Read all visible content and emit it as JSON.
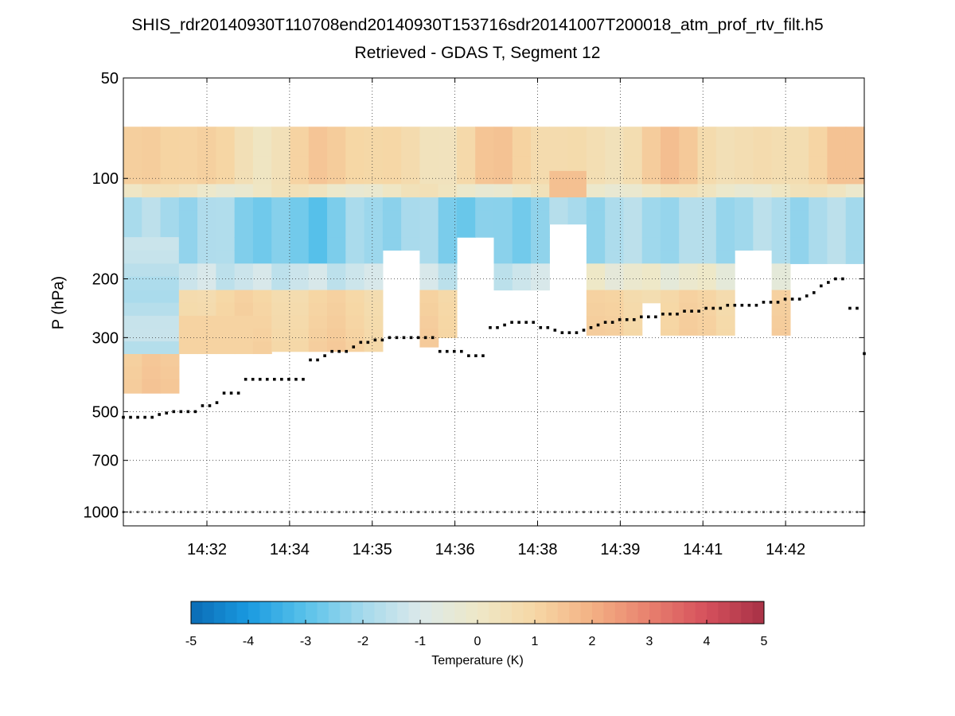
{
  "chart_data": {
    "type": "heatmap",
    "title": "SHIS_rdr20140930T110708end20140930T153716sdr20141007T200018_atm_prof_rtv_filt.h5",
    "subtitle": "Retrieved - GDAS T, Segment 12",
    "ylabel": "P (hPa)",
    "yscale": "log",
    "ylim": [
      50,
      1100
    ],
    "yticks": [
      50,
      100,
      200,
      300,
      500,
      700,
      1000
    ],
    "yticklabels": [
      "50",
      "100",
      "200",
      "300",
      "500",
      "700",
      "1000"
    ],
    "xticklabels": [
      "14:32",
      "14:34",
      "14:35",
      "14:36",
      "14:38",
      "14:39",
      "14:41",
      "14:42"
    ],
    "grid": true,
    "n_columns": 40,
    "pressure_levels": [
      70,
      78,
      86,
      95,
      104,
      114,
      125,
      137,
      150,
      164,
      180,
      197,
      216,
      236,
      258,
      282,
      308,
      336,
      366,
      400,
      440
    ],
    "top_pressure": 70,
    "valid_bottom_pressure": [
      440,
      440,
      440,
      335,
      335,
      335,
      335,
      335,
      330,
      330,
      330,
      330,
      330,
      330,
      320,
      320,
      320,
      300,
      300,
      300,
      300,
      300,
      295,
      295,
      295,
      295,
      295,
      295,
      295,
      295,
      295,
      295,
      295,
      295,
      295,
      295,
      295,
      295,
      295,
      295
    ],
    "gaps": [
      {
        "from_col": 14.1,
        "to_col": 16.1,
        "top_pressure": 160
      },
      {
        "from_col": 18.0,
        "to_col": 20.1,
        "top_pressure": 142
      },
      {
        "from_col": 20.1,
        "to_col": 22.6,
        "top_pressure": 200
      },
      {
        "from_col": 23.0,
        "to_col": 25.0,
        "top_pressure": 132
      },
      {
        "from_col": 28.0,
        "to_col": 28.9,
        "top_pressure": 235
      },
      {
        "from_col": 33.1,
        "to_col": 35.4,
        "top_pressure": 160
      },
      {
        "from_col": 36.0,
        "to_col": 36.4,
        "top_pressure": 178
      },
      {
        "from_col": 36.4,
        "to_col": 37.0,
        "top_pressure": 170
      },
      {
        "from_col": 37.0,
        "to_col": 40.0,
        "top_pressure": 172
      }
    ],
    "surface_pressure": [
      520,
      520,
      520,
      520,
      520,
      510,
      505,
      500,
      500,
      500,
      500,
      480,
      480,
      470,
      440,
      440,
      440,
      400,
      400,
      400,
      400,
      400,
      400,
      400,
      400,
      400,
      350,
      350,
      340,
      330,
      330,
      330,
      320,
      310,
      310,
      305,
      305,
      300,
      300,
      300,
      300,
      300,
      300,
      300,
      330,
      330,
      330,
      330,
      340,
      340,
      340,
      280,
      280,
      275,
      270,
      270,
      270,
      270,
      280,
      280,
      285,
      290,
      290,
      290,
      285,
      280,
      275,
      270,
      270,
      265,
      265,
      265,
      260,
      260,
      260,
      255,
      255,
      255,
      250,
      250,
      250,
      245,
      245,
      245,
      240,
      240,
      240,
      240,
      240,
      235,
      235,
      235,
      230,
      230,
      230,
      225,
      220,
      210,
      205,
      200,
      200,
      245,
      245,
      335
    ],
    "surface_markers_visible_cols": [
      0,
      1,
      2,
      4,
      6,
      7,
      8,
      9,
      11,
      12,
      13,
      14,
      15,
      16,
      17,
      18,
      19,
      20,
      21,
      22,
      23,
      24,
      25,
      26,
      27,
      28,
      29,
      30,
      31,
      32,
      33,
      34,
      35,
      36,
      37,
      38,
      39
    ],
    "colorbar": {
      "label": "Temperature (K)",
      "vmin": -5,
      "vmax": 5,
      "ticks": [
        "-5",
        "-4",
        "-3",
        "-2",
        "-1",
        "0",
        "1",
        "2",
        "3",
        "4",
        "5"
      ],
      "stops": [
        "#0a6bb5",
        "#1a9ae0",
        "#59c2ea",
        "#a4d9ec",
        "#dbe9ea",
        "#eee8c8",
        "#f6d7a5",
        "#f3b184",
        "#e8806e",
        "#d5505c",
        "#a73146"
      ]
    }
  }
}
